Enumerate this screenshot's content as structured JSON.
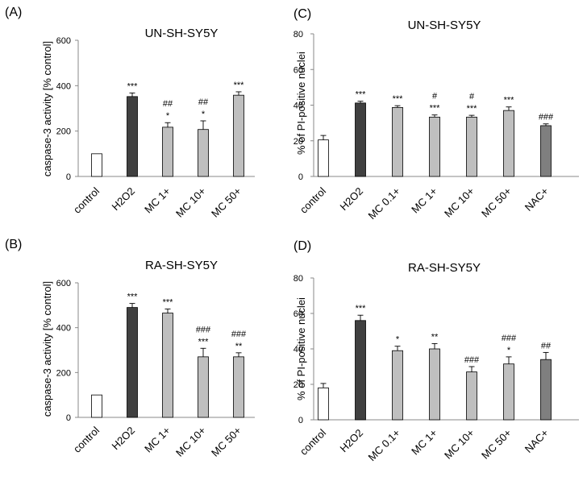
{
  "chart_data": [
    {
      "panel": "(A)",
      "type": "bar",
      "title": "UN-SH-SY5Y",
      "ylabel": "caspase-3 activity [% control]",
      "ylim": [
        0,
        600
      ],
      "yticks": [
        "0",
        "200",
        "400",
        "600"
      ],
      "categories": [
        "control",
        "H2O2",
        "MC 1+",
        "MC 10+",
        "MC 50+"
      ],
      "values": [
        100,
        352,
        217,
        207,
        358
      ],
      "errors": [
        0,
        16,
        20,
        38,
        15
      ],
      "fills": [
        "white",
        "dark",
        "light",
        "light",
        "light"
      ],
      "annotations": [
        [],
        [
          "***"
        ],
        [
          "*",
          "##"
        ],
        [
          "*",
          "##"
        ],
        [
          "***"
        ]
      ]
    },
    {
      "panel": "(C)",
      "type": "bar",
      "title": "UN-SH-SY5Y",
      "ylabel": "% of PI-positive nuclei",
      "ylim": [
        0,
        80
      ],
      "yticks": [
        "0",
        "20",
        "40",
        "60",
        "80"
      ],
      "categories": [
        "control",
        "H2O2",
        "MC 0.1+",
        "MC 1+",
        "MC 10+",
        "MC 50+",
        "NAC+"
      ],
      "values": [
        20.5,
        41.2,
        38.7,
        33.3,
        33.3,
        37,
        28.5
      ],
      "errors": [
        2.5,
        1,
        1,
        1.2,
        1,
        2,
        1
      ],
      "fills": [
        "white",
        "dark",
        "light",
        "light",
        "light",
        "light",
        "mid"
      ],
      "annotations": [
        [],
        [
          "***"
        ],
        [
          "***"
        ],
        [
          "***",
          "#"
        ],
        [
          "***",
          "#"
        ],
        [
          "***"
        ],
        [
          "###"
        ]
      ]
    },
    {
      "panel": "(B)",
      "type": "bar",
      "title": "RA-SH-SY5Y",
      "ylabel": "caspase-3 activity [% control]",
      "ylim": [
        0,
        600
      ],
      "yticks": [
        "0",
        "200",
        "400",
        "600"
      ],
      "categories": [
        "control",
        "H2O2",
        "MC 1+",
        "MC 10+",
        "MC 50+"
      ],
      "values": [
        100,
        490,
        465,
        270,
        270
      ],
      "errors": [
        0,
        18,
        18,
        38,
        18
      ],
      "fills": [
        "white",
        "dark",
        "light",
        "light",
        "light"
      ],
      "annotations": [
        [],
        [
          "***"
        ],
        [
          "***"
        ],
        [
          "***",
          "###"
        ],
        [
          "**",
          "###"
        ]
      ]
    },
    {
      "panel": "(D)",
      "type": "bar",
      "title": "RA-SH-SY5Y",
      "ylabel": "% of PI-positive nuclei",
      "ylim": [
        0,
        80
      ],
      "yticks": [
        "0",
        "20",
        "40",
        "60",
        "80"
      ],
      "categories": [
        "control",
        "H2O2",
        "MC 0.1+",
        "MC 1+",
        "MC 10+",
        "MC 50+",
        "NAC+"
      ],
      "values": [
        18,
        56,
        39,
        40,
        27,
        31.5,
        34
      ],
      "errors": [
        2.5,
        3,
        2.5,
        3,
        3,
        4,
        4
      ],
      "fills": [
        "white",
        "dark",
        "light",
        "light",
        "light",
        "light",
        "mid"
      ],
      "annotations": [
        [],
        [
          "***"
        ],
        [
          "*"
        ],
        [
          "**"
        ],
        [
          "###"
        ],
        [
          "*",
          "###"
        ],
        [
          "##"
        ]
      ]
    }
  ],
  "colors": {
    "white": "#ffffff",
    "dark": "#404040",
    "light": "#bfbfbf",
    "mid": "#7f7f7f",
    "stroke": "#000000",
    "axis": "#888888"
  }
}
